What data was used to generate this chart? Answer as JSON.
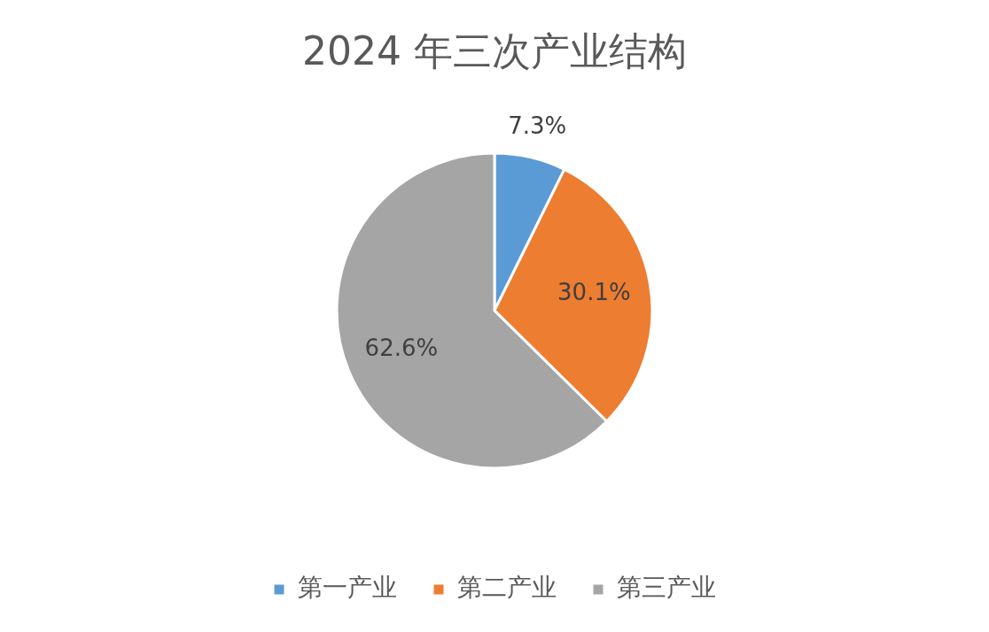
{
  "chart_data": {
    "type": "pie",
    "title": "2024 年三次产业结构",
    "categories": [
      "第一产业",
      "第二产业",
      "第三产业"
    ],
    "values": [
      7.3,
      30.1,
      62.6
    ],
    "colors": [
      "#5b9bd5",
      "#ed7d31",
      "#a5a5a5"
    ],
    "value_labels": [
      "7.3%",
      "30.1%",
      "62.6%"
    ],
    "legend": "bottom"
  }
}
